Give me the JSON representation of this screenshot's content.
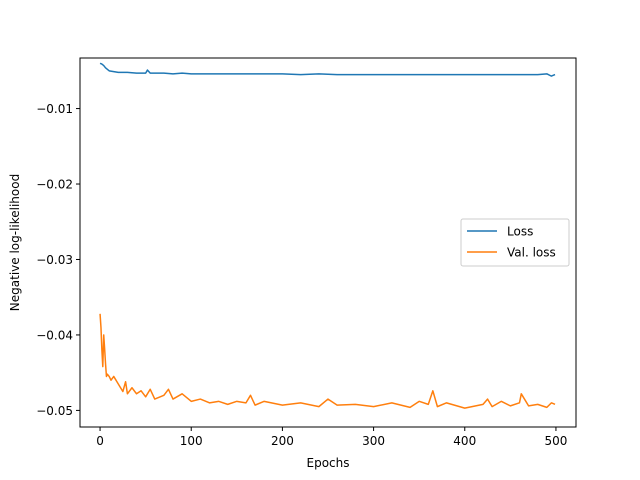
{
  "chart_data": {
    "type": "line",
    "title": "",
    "xlabel": "Epochs",
    "ylabel": "Negative log-likelihood",
    "xlim": [
      -22,
      522
    ],
    "ylim": [
      -0.0522,
      -0.0033
    ],
    "xticks": [
      0,
      100,
      200,
      300,
      400,
      500
    ],
    "xtick_labels": [
      "0",
      "100",
      "200",
      "300",
      "400",
      "500"
    ],
    "yticks": [
      -0.01,
      -0.02,
      -0.03,
      -0.04,
      -0.05
    ],
    "ytick_labels": [
      "−0.01",
      "−0.02",
      "−0.03",
      "−0.04",
      "−0.05"
    ],
    "grid": false,
    "legend_position": "center-right",
    "series": [
      {
        "name": "Loss",
        "color": "#1f77b4",
        "x": [
          0,
          2,
          4,
          6,
          8,
          10,
          15,
          20,
          30,
          40,
          50,
          52,
          55,
          60,
          70,
          80,
          90,
          100,
          120,
          140,
          160,
          180,
          200,
          220,
          240,
          260,
          280,
          300,
          320,
          340,
          360,
          380,
          400,
          420,
          440,
          460,
          480,
          490,
          495,
          499
        ],
        "y": [
          -0.004,
          -0.0041,
          -0.0043,
          -0.0046,
          -0.0048,
          -0.005,
          -0.0051,
          -0.0052,
          -0.0052,
          -0.0053,
          -0.0053,
          -0.0049,
          -0.0053,
          -0.0053,
          -0.0053,
          -0.0054,
          -0.0053,
          -0.0054,
          -0.0054,
          -0.0054,
          -0.0054,
          -0.0054,
          -0.0054,
          -0.0055,
          -0.0054,
          -0.0055,
          -0.0055,
          -0.0055,
          -0.0055,
          -0.0055,
          -0.0055,
          -0.0055,
          -0.0055,
          -0.0055,
          -0.0055,
          -0.0055,
          -0.0055,
          -0.0054,
          -0.0057,
          -0.0055
        ]
      },
      {
        "name": "Val. loss",
        "color": "#ff7f0e",
        "x": [
          0,
          1,
          2,
          3,
          4,
          5,
          6,
          7,
          8,
          10,
          12,
          15,
          20,
          25,
          28,
          30,
          35,
          40,
          45,
          50,
          55,
          60,
          70,
          75,
          80,
          90,
          100,
          110,
          120,
          130,
          140,
          150,
          160,
          165,
          170,
          180,
          200,
          220,
          240,
          250,
          260,
          280,
          300,
          320,
          340,
          350,
          360,
          365,
          370,
          380,
          400,
          420,
          425,
          430,
          440,
          450,
          460,
          462,
          470,
          480,
          490,
          495,
          499
        ],
        "y": [
          -0.0372,
          -0.039,
          -0.042,
          -0.0442,
          -0.04,
          -0.0418,
          -0.0438,
          -0.0455,
          -0.0452,
          -0.0455,
          -0.046,
          -0.0455,
          -0.0465,
          -0.0475,
          -0.0462,
          -0.0478,
          -0.047,
          -0.0478,
          -0.0474,
          -0.0482,
          -0.0472,
          -0.0485,
          -0.048,
          -0.0472,
          -0.0485,
          -0.0478,
          -0.0488,
          -0.0485,
          -0.049,
          -0.0488,
          -0.0492,
          -0.0488,
          -0.049,
          -0.048,
          -0.0493,
          -0.0488,
          -0.0493,
          -0.049,
          -0.0495,
          -0.0485,
          -0.0493,
          -0.0492,
          -0.0495,
          -0.049,
          -0.0496,
          -0.0488,
          -0.0492,
          -0.0474,
          -0.0495,
          -0.049,
          -0.0497,
          -0.0492,
          -0.0485,
          -0.0495,
          -0.0488,
          -0.0494,
          -0.049,
          -0.0478,
          -0.0494,
          -0.0492,
          -0.0496,
          -0.049,
          -0.0492
        ]
      }
    ]
  }
}
